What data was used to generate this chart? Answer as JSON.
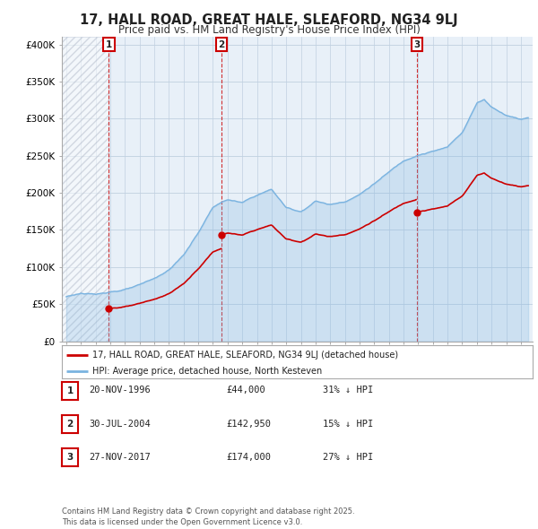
{
  "title": "17, HALL ROAD, GREAT HALE, SLEAFORD, NG34 9LJ",
  "subtitle": "Price paid vs. HM Land Registry's House Price Index (HPI)",
  "hpi_color": "#7ab3e0",
  "hpi_fill_color": "#ddeeff",
  "price_color": "#cc0000",
  "background_color": "#e8f0f8",
  "grid_color": "#c0d0e0",
  "ylim": [
    0,
    410000
  ],
  "yticks": [
    0,
    50000,
    100000,
    150000,
    200000,
    250000,
    300000,
    350000,
    400000
  ],
  "ytick_labels": [
    "£0",
    "£50K",
    "£100K",
    "£150K",
    "£200K",
    "£250K",
    "£300K",
    "£350K",
    "£400K"
  ],
  "xlim_start": 1993.7,
  "xlim_end": 2025.8,
  "sales": [
    {
      "date": 1996.9,
      "price": 44000,
      "label": "1"
    },
    {
      "date": 2004.58,
      "price": 142950,
      "label": "2"
    },
    {
      "date": 2017.92,
      "price": 174000,
      "label": "3"
    }
  ],
  "legend_entries": [
    "17, HALL ROAD, GREAT HALE, SLEAFORD, NG34 9LJ (detached house)",
    "HPI: Average price, detached house, North Kesteven"
  ],
  "table_rows": [
    {
      "label": "1",
      "date": "20-NOV-1996",
      "price": "£44,000",
      "note": "31% ↓ HPI"
    },
    {
      "label": "2",
      "date": "30-JUL-2004",
      "price": "£142,950",
      "note": "15% ↓ HPI"
    },
    {
      "label": "3",
      "date": "27-NOV-2017",
      "price": "£174,000",
      "note": "27% ↓ HPI"
    }
  ],
  "footer": "Contains HM Land Registry data © Crown copyright and database right 2025.\nThis data is licensed under the Open Government Licence v3.0."
}
